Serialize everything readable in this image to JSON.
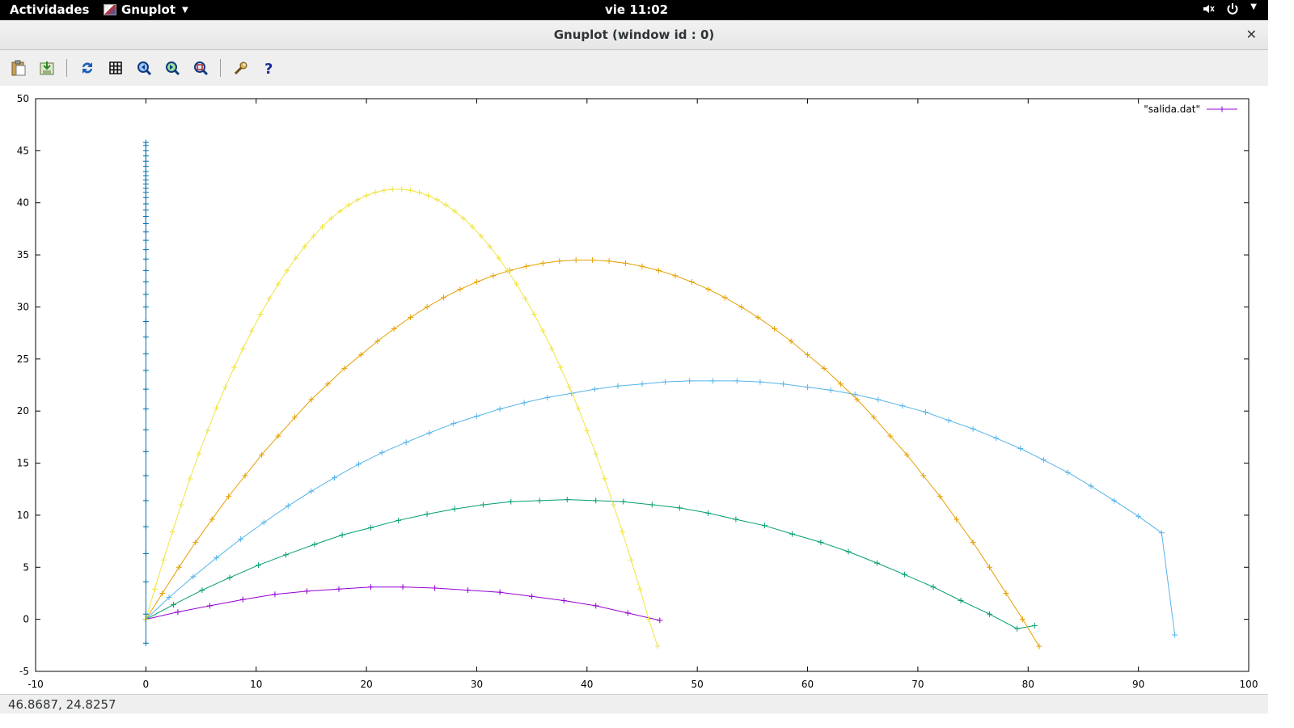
{
  "topbar": {
    "activities": "Actividades",
    "app_name": "Gnuplot",
    "clock": "vie 11:02"
  },
  "window": {
    "title": "Gnuplot (window id : 0)"
  },
  "toolbar": {
    "buttons": [
      "copy-to-clipboard",
      "export",
      "replot",
      "toggle-grid",
      "zoom-previous",
      "zoom-next",
      "unzoom",
      "preferences",
      "help"
    ]
  },
  "status": {
    "coords": "46.8687,  24.8257"
  },
  "colors": {
    "purple": "#9400d3",
    "green": "#009e73",
    "blue": "#56b4e9",
    "orange": "#e69f00",
    "yellow": "#f0e442",
    "steel": "#0072b2"
  },
  "chart_data": {
    "type": "line",
    "markers": "plus",
    "xlim": [
      -10,
      100
    ],
    "ylim": [
      -5,
      50
    ],
    "xticks": [
      "-10",
      "0",
      "10",
      "20",
      "30",
      "40",
      "50",
      "60",
      "70",
      "80",
      "90",
      "100"
    ],
    "yticks": [
      "-5",
      "0",
      "5",
      "10",
      "15",
      "20",
      "25",
      "30",
      "35",
      "40",
      "45",
      "50"
    ],
    "legend": {
      "label": "\"salida.dat\"",
      "position": "top-right"
    },
    "series": [
      {
        "color": "#9400d3",
        "x": [
          0,
          2.9,
          5.8,
          8.8,
          11.7,
          14.6,
          17.5,
          20.4,
          23.3,
          26.2,
          29.2,
          32.1,
          35,
          37.9,
          40.8,
          43.7,
          46.6
        ],
        "y": [
          0,
          0.7,
          1.3,
          1.9,
          2.4,
          2.7,
          2.9,
          3.1,
          3.1,
          3.0,
          2.8,
          2.6,
          2.2,
          1.8,
          1.3,
          0.6,
          -0.1
        ]
      },
      {
        "color": "#009e73",
        "x": [
          0,
          2.5,
          5.1,
          7.6,
          10.2,
          12.7,
          15.3,
          17.8,
          20.4,
          22.9,
          25.5,
          28,
          30.6,
          33.1,
          35.7,
          38.2,
          40.8,
          43.3,
          45.9,
          48.4,
          51,
          53.5,
          56.1,
          58.6,
          61.2,
          63.7,
          66.3,
          68.8,
          71.4,
          73.9,
          76.5,
          79,
          80.6
        ],
        "y": [
          0,
          1.4,
          2.8,
          4.0,
          5.2,
          6.2,
          7.2,
          8.1,
          8.8,
          9.5,
          10.1,
          10.6,
          11.0,
          11.3,
          11.4,
          11.5,
          11.4,
          11.3,
          11.0,
          10.7,
          10.2,
          9.6,
          9.0,
          8.2,
          7.4,
          6.5,
          5.4,
          4.3,
          3.1,
          1.8,
          0.5,
          -0.9,
          -0.6
        ]
      },
      {
        "color": "#56b4e9",
        "x": [
          0,
          2.1,
          4.3,
          6.4,
          8.6,
          10.7,
          12.9,
          15,
          17.1,
          19.3,
          21.4,
          23.6,
          25.7,
          27.9,
          30,
          32.1,
          34.3,
          36.4,
          38.6,
          40.7,
          42.8,
          45,
          47.1,
          49.3,
          51.4,
          53.6,
          55.7,
          57.8,
          60,
          62.1,
          64.3,
          66.4,
          68.6,
          70.7,
          72.8,
          75,
          77.1,
          79.3,
          81.4,
          83.6,
          85.7,
          87.8,
          90,
          92.1,
          93.3
        ],
        "y": [
          0,
          2.1,
          4.1,
          5.9,
          7.7,
          9.3,
          10.9,
          12.3,
          13.6,
          14.9,
          16.0,
          17.0,
          17.9,
          18.8,
          19.5,
          20.2,
          20.8,
          21.3,
          21.7,
          22.1,
          22.4,
          22.6,
          22.8,
          22.9,
          22.9,
          22.9,
          22.8,
          22.6,
          22.3,
          22.0,
          21.6,
          21.1,
          20.5,
          19.9,
          19.1,
          18.3,
          17.4,
          16.4,
          15.3,
          14.1,
          12.8,
          11.4,
          9.9,
          8.3,
          -1.5
        ]
      },
      {
        "color": "#e69f00",
        "x": [
          0,
          1.5,
          3,
          4.5,
          6,
          7.5,
          9,
          10.5,
          12,
          13.5,
          15,
          16.5,
          18,
          19.5,
          21,
          22.5,
          24,
          25.5,
          27,
          28.5,
          30,
          31.5,
          33,
          34.5,
          36,
          37.5,
          39,
          40.5,
          42,
          43.5,
          45,
          46.5,
          48,
          49.5,
          51,
          52.5,
          54,
          55.5,
          57,
          58.5,
          60,
          61.5,
          63,
          64.5,
          66,
          67.5,
          69,
          70.5,
          72,
          73.5,
          75,
          76.5,
          78,
          79.5,
          81
        ],
        "y": [
          0,
          2.5,
          5.0,
          7.4,
          9.6,
          11.8,
          13.8,
          15.8,
          17.6,
          19.4,
          21.1,
          22.6,
          24.1,
          25.4,
          26.7,
          27.9,
          29.0,
          30.0,
          30.9,
          31.7,
          32.4,
          33.0,
          33.5,
          33.9,
          34.2,
          34.4,
          34.5,
          34.5,
          34.4,
          34.2,
          33.9,
          33.5,
          33.0,
          32.4,
          31.7,
          30.9,
          30.0,
          29.0,
          27.9,
          26.7,
          25.4,
          24.1,
          22.6,
          21.1,
          19.4,
          17.6,
          15.8,
          13.8,
          11.8,
          9.6,
          7.4,
          5.0,
          2.5,
          0,
          -2.6
        ]
      },
      {
        "color": "#f0e442",
        "x": [
          0,
          0.8,
          1.6,
          2.4,
          3.2,
          4,
          4.8,
          5.6,
          6.4,
          7.2,
          8,
          8.8,
          9.6,
          10.4,
          11.2,
          12,
          12.8,
          13.6,
          14.4,
          15.2,
          16,
          16.8,
          17.6,
          18.4,
          19.2,
          20,
          20.8,
          21.6,
          22.4,
          23.2,
          24,
          24.8,
          25.6,
          26.4,
          27.2,
          28,
          28.8,
          29.6,
          30.4,
          31.2,
          32,
          32.8,
          33.6,
          34.4,
          35.2,
          36,
          36.8,
          37.6,
          38.4,
          39.2,
          40,
          40.8,
          41.6,
          42.4,
          43.2,
          44,
          44.8,
          45.6,
          46.4
        ],
        "y": [
          0,
          2.9,
          5.7,
          8.4,
          11.0,
          13.5,
          15.9,
          18.1,
          20.3,
          22.3,
          24.2,
          26.0,
          27.7,
          29.3,
          30.8,
          32.2,
          33.5,
          34.7,
          35.8,
          36.8,
          37.7,
          38.5,
          39.2,
          39.8,
          40.3,
          40.7,
          41.0,
          41.2,
          41.3,
          41.3,
          41.2,
          41.0,
          40.7,
          40.3,
          39.8,
          39.2,
          38.5,
          37.7,
          36.8,
          35.8,
          34.7,
          33.5,
          32.2,
          30.8,
          29.3,
          27.7,
          26.0,
          24.2,
          22.3,
          20.3,
          18.1,
          15.9,
          13.5,
          11.0,
          8.4,
          5.7,
          2.9,
          0,
          -2.6
        ]
      },
      {
        "color": "#0072b2",
        "x": [
          0,
          0,
          0,
          0,
          0,
          0,
          0,
          0,
          0,
          0,
          0,
          0,
          0,
          0,
          0,
          0,
          0,
          0,
          0,
          0,
          0,
          0,
          0,
          0,
          0,
          0,
          0,
          0,
          0,
          0,
          0,
          0,
          0,
          0,
          0,
          0,
          0,
          0,
          0,
          0
        ],
        "y": [
          -2.3,
          0.5,
          3.6,
          6.3,
          8.9,
          11.4,
          13.8,
          16.1,
          18.2,
          20.2,
          22.1,
          23.9,
          25.5,
          27.1,
          28.6,
          30.0,
          31.2,
          32.4,
          33.5,
          34.6,
          35.5,
          36.4,
          37.2,
          38.0,
          38.7,
          39.3,
          39.9,
          40.5,
          41.0,
          41.4,
          41.8,
          42.2,
          42.6,
          43.0,
          43.5,
          44.0,
          44.5,
          45.0,
          45.5,
          45.8
        ]
      }
    ]
  }
}
